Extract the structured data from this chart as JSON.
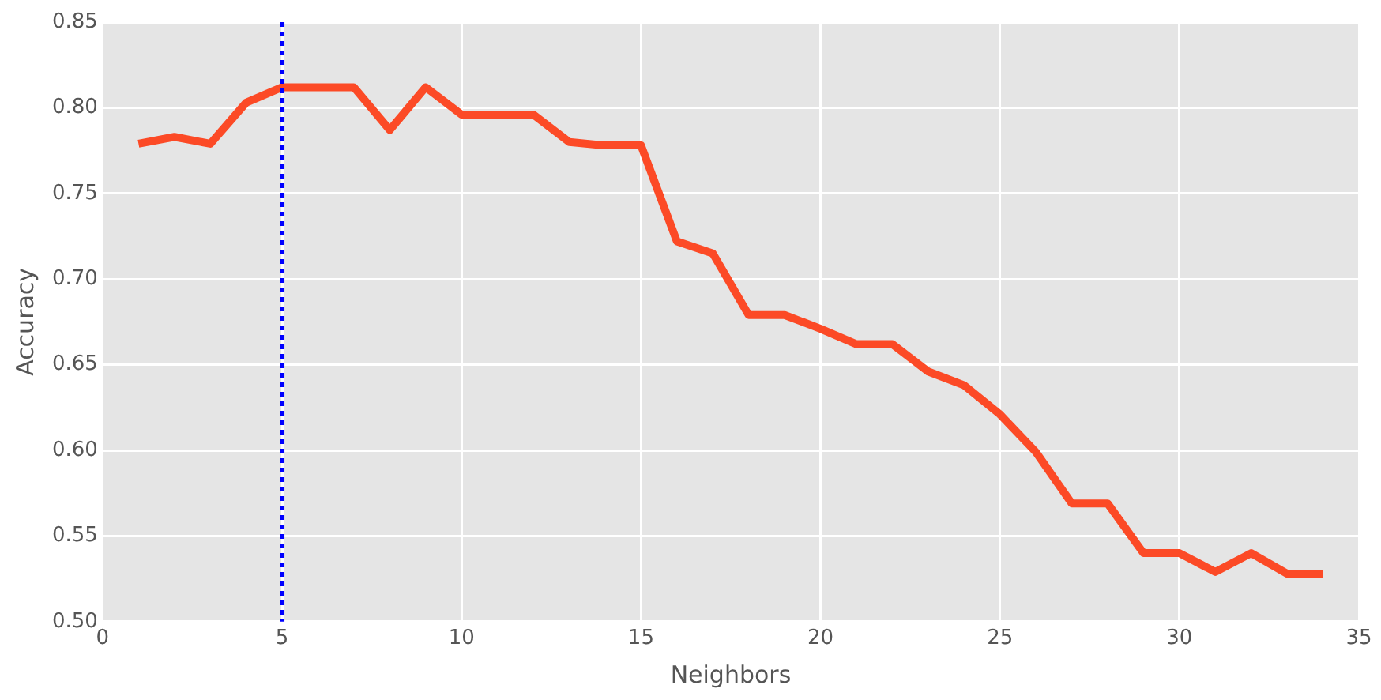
{
  "chart_data": {
    "type": "line",
    "xlabel": "Neighbors",
    "ylabel": "Accuracy",
    "x": [
      1,
      2,
      3,
      4,
      5,
      6,
      7,
      8,
      9,
      10,
      11,
      12,
      13,
      14,
      15,
      16,
      17,
      18,
      19,
      20,
      21,
      22,
      23,
      24,
      25,
      26,
      27,
      28,
      29,
      30,
      31,
      32,
      33,
      34
    ],
    "series": [
      {
        "color": "#fc4a26",
        "values": [
          0.779,
          0.783,
          0.779,
          0.803,
          0.812,
          0.812,
          0.812,
          0.787,
          0.812,
          0.796,
          0.796,
          0.796,
          0.78,
          0.778,
          0.778,
          0.722,
          0.715,
          0.679,
          0.679,
          0.671,
          0.662,
          0.662,
          0.646,
          0.638,
          0.621,
          0.599,
          0.569,
          0.569,
          0.54,
          0.54,
          0.529,
          0.54,
          0.528,
          0.528
        ]
      }
    ],
    "xlim": [
      0,
      35
    ],
    "xticks": [
      0,
      5,
      10,
      15,
      20,
      25,
      30,
      35
    ],
    "ylim": [
      0.5,
      0.85
    ],
    "yticks": [
      {
        "value": 0.5,
        "label": "0.50"
      },
      {
        "value": 0.55,
        "label": "0.55"
      },
      {
        "value": 0.6,
        "label": "0.60"
      },
      {
        "value": 0.65,
        "label": "0.65"
      },
      {
        "value": 0.7,
        "label": "0.70"
      },
      {
        "value": 0.75,
        "label": "0.75"
      },
      {
        "value": 0.8,
        "label": "0.80"
      },
      {
        "value": 0.85,
        "label": "0.85"
      }
    ],
    "ref_lines": [
      {
        "axis": "x",
        "value": 5,
        "color": "#0000ff",
        "line_style": "dotted"
      }
    ],
    "grid": true,
    "legend": false,
    "marker": "none",
    "line_style": "solid"
  }
}
